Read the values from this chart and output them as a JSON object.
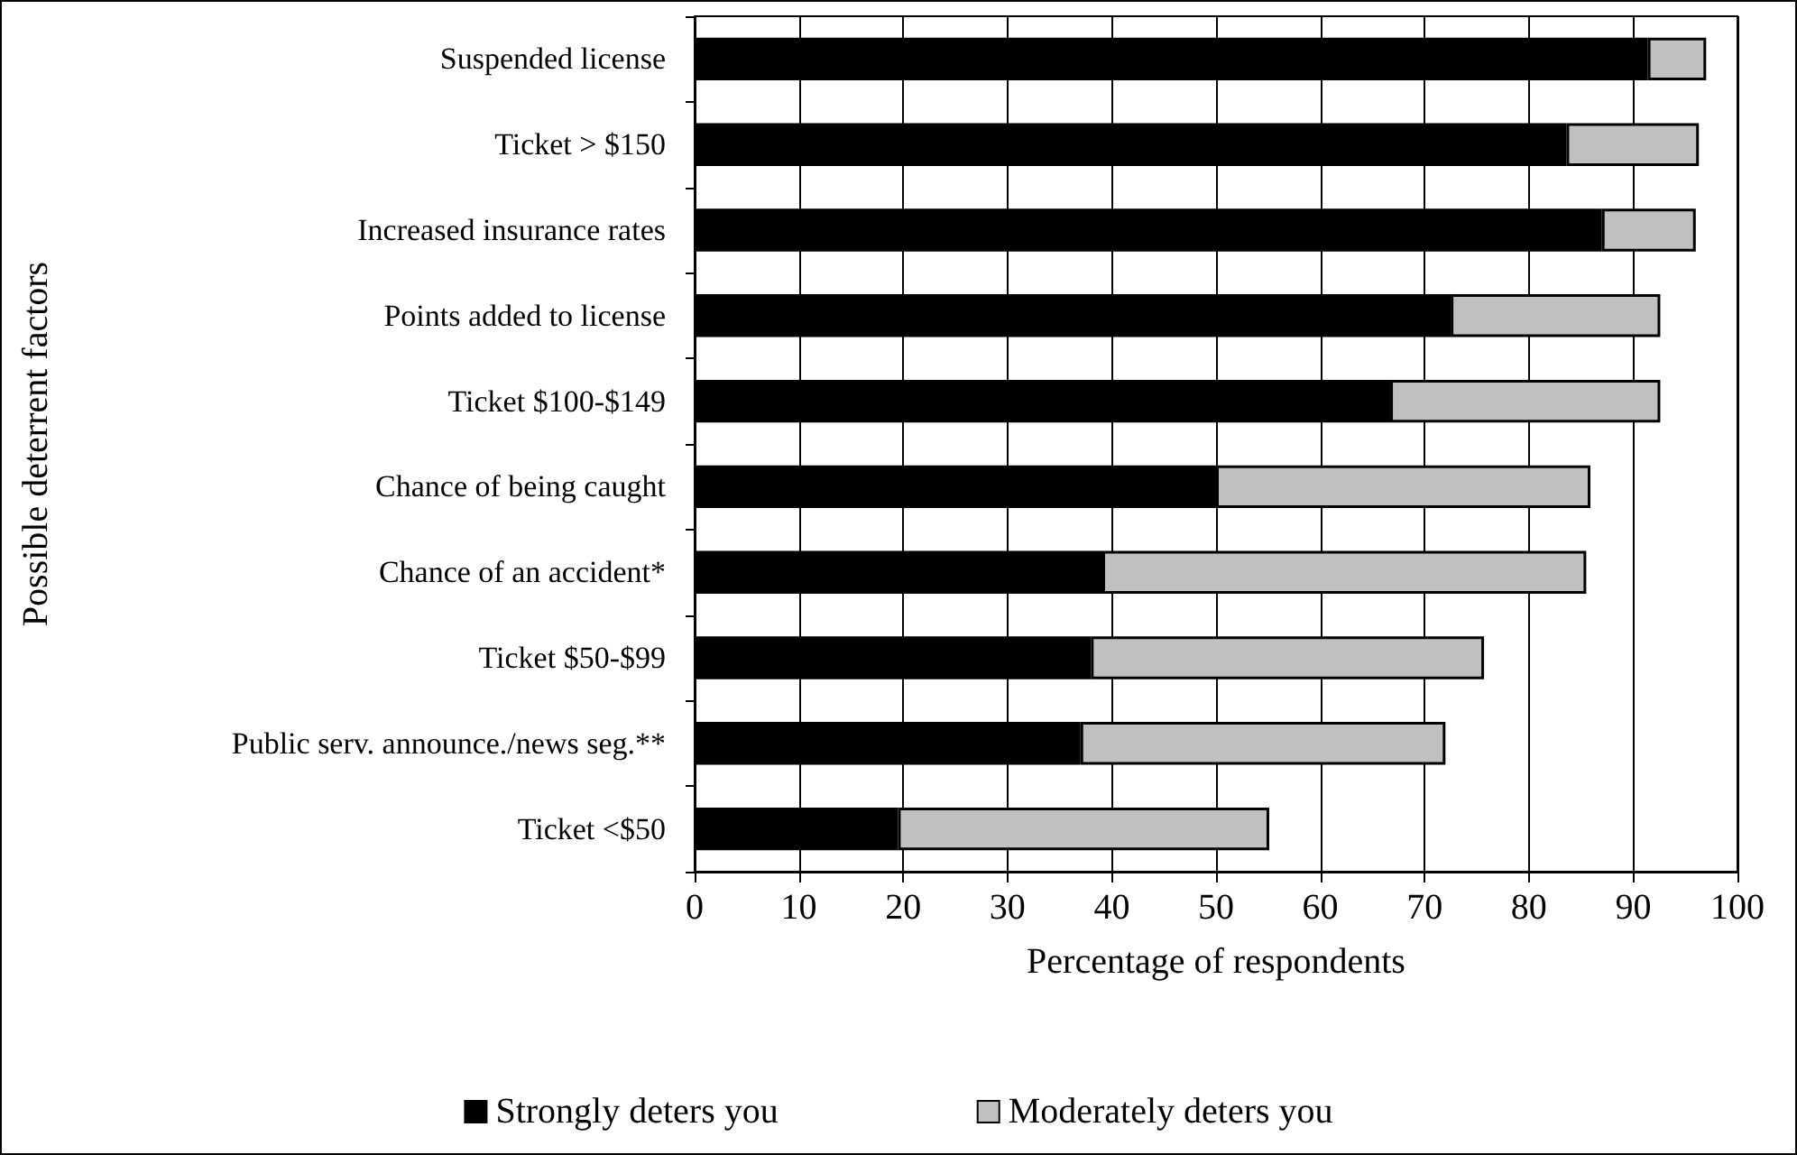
{
  "chart_data": {
    "type": "bar",
    "orientation": "horizontal",
    "stacked": true,
    "xlabel": "Percentage of respondents",
    "ylabel": "Possible deterrent factors",
    "categories": [
      "Suspended license",
      "Ticket > $150",
      "Increased insurance rates",
      "Points added to license",
      "Ticket $100-$149",
      "Chance of being caught",
      "Chance of an accident*",
      "Ticket $50-$99",
      "Public serv. announce./news seg.**",
      "Ticket <$50"
    ],
    "series": [
      {
        "name": "Strongly deters you",
        "color": "#000000",
        "values": [
          91.4,
          83.6,
          87.0,
          72.5,
          66.7,
          50.0,
          39.1,
          38.0,
          37.0,
          19.5
        ]
      },
      {
        "name": "Moderately deters you",
        "color": "#c0c0c0",
        "values": [
          5.6,
          12.7,
          9.0,
          20.1,
          25.9,
          35.9,
          46.4,
          37.7,
          35.0,
          35.6
        ]
      }
    ],
    "xlim": [
      0,
      100
    ],
    "xticks": [
      0,
      10,
      20,
      30,
      40,
      50,
      60,
      70,
      80,
      90,
      100
    ],
    "grid": "x",
    "legend": "bottom"
  }
}
